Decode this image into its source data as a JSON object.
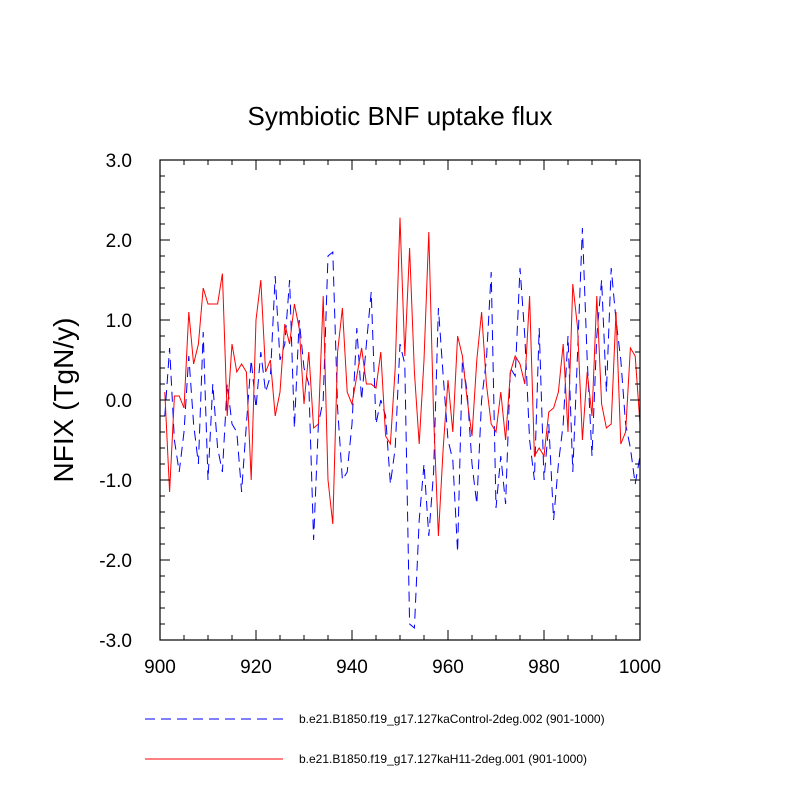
{
  "chart_data": {
    "type": "line",
    "title": "Symbiotic BNF uptake flux",
    "xlabel": "",
    "ylabel": "NFIX  (TgN/y)",
    "xlim": [
      900,
      1000
    ],
    "ylim": [
      -3.0,
      3.0
    ],
    "x_ticks": [
      900,
      920,
      940,
      960,
      980,
      1000
    ],
    "x_tick_labels": [
      "900",
      "920",
      "940",
      "960",
      "980",
      "1000"
    ],
    "y_ticks": [
      -3.0,
      -2.0,
      -1.0,
      0.0,
      1.0,
      2.0,
      3.0
    ],
    "y_tick_labels": [
      "-3.0",
      "-2.0",
      "-1.0",
      "0.0",
      "1.0",
      "2.0",
      "3.0"
    ],
    "x_start": 901,
    "series": [
      {
        "name": "b.e21.B1850.f19_g17.127kaControl-2deg.002 (901-1000)",
        "color": "#0000ff",
        "style": "dashed",
        "values": [
          -0.2,
          0.65,
          -0.5,
          -0.9,
          -0.4,
          0.55,
          -0.3,
          -0.8,
          0.85,
          -1.0,
          0.2,
          -0.6,
          -0.9,
          0.2,
          -0.3,
          -0.4,
          -1.15,
          -0.3,
          0.5,
          -0.1,
          0.6,
          0.1,
          0.3,
          1.55,
          0.5,
          0.7,
          1.5,
          -0.35,
          1.0,
          0.4,
          0.2,
          -1.75,
          -0.3,
          0.0,
          1.8,
          1.85,
          -0.1,
          -1.0,
          -0.9,
          -0.3,
          0.9,
          0.0,
          0.7,
          1.35,
          -0.3,
          0.0,
          -0.2,
          -1.05,
          -0.6,
          0.7,
          0.45,
          -2.8,
          -2.85,
          -1.5,
          -0.8,
          -1.7,
          -0.9,
          1.15,
          0.3,
          -0.5,
          -0.75,
          -1.9,
          0.5,
          0.1,
          -0.8,
          -1.3,
          0.0,
          0.5,
          1.6,
          -1.35,
          -0.7,
          -1.3,
          0.4,
          0.3,
          1.65,
          0.8,
          -0.5,
          -1.0,
          0.9,
          -1.0,
          -0.3,
          -1.5,
          -0.8,
          -0.3,
          0.8,
          -0.9,
          0.6,
          2.15,
          0.5,
          -0.7,
          0.8,
          1.5,
          0.1,
          1.65,
          1.0,
          0.5,
          -0.3,
          -0.6,
          -1.05,
          -0.7
        ]
      },
      {
        "name": "b.e21.B1850.f19_g17.127kaH11-2deg.001 (901-1000)",
        "color": "#ff0000",
        "style": "solid",
        "values": [
          0.1,
          -1.15,
          0.05,
          0.05,
          -0.1,
          1.1,
          0.45,
          0.7,
          1.4,
          1.2,
          1.2,
          1.2,
          1.58,
          -0.2,
          0.7,
          0.35,
          0.45,
          0.35,
          -1.0,
          1.0,
          1.5,
          0.35,
          0.5,
          -0.2,
          0.1,
          0.95,
          0.7,
          1.2,
          0.9,
          -0.05,
          0.6,
          -0.35,
          -0.3,
          1.3,
          -1.0,
          -1.55,
          0.6,
          1.15,
          0.1,
          -0.05,
          0.3,
          0.65,
          0.2,
          0.2,
          0.15,
          0.6,
          -0.45,
          -0.55,
          0.4,
          2.28,
          0.55,
          1.9,
          0.35,
          -0.55,
          0.5,
          2.1,
          -0.2,
          -1.7,
          -0.6,
          0.25,
          -0.4,
          0.8,
          0.55,
          0.0,
          -0.45,
          0.5,
          1.1,
          0.2,
          -0.3,
          -0.4,
          0.1,
          -0.5,
          0.35,
          0.55,
          0.45,
          0.2,
          1.3,
          -0.7,
          -0.6,
          -0.7,
          -0.15,
          -0.1,
          0.1,
          0.7,
          -0.4,
          1.45,
          0.9,
          -0.5,
          0.35,
          -0.2,
          1.3,
          -0.05,
          -0.35,
          -0.3,
          1.1,
          -0.55,
          -0.4,
          0.65,
          0.55,
          -0.3
        ]
      }
    ],
    "legend_placement": "bottom"
  }
}
